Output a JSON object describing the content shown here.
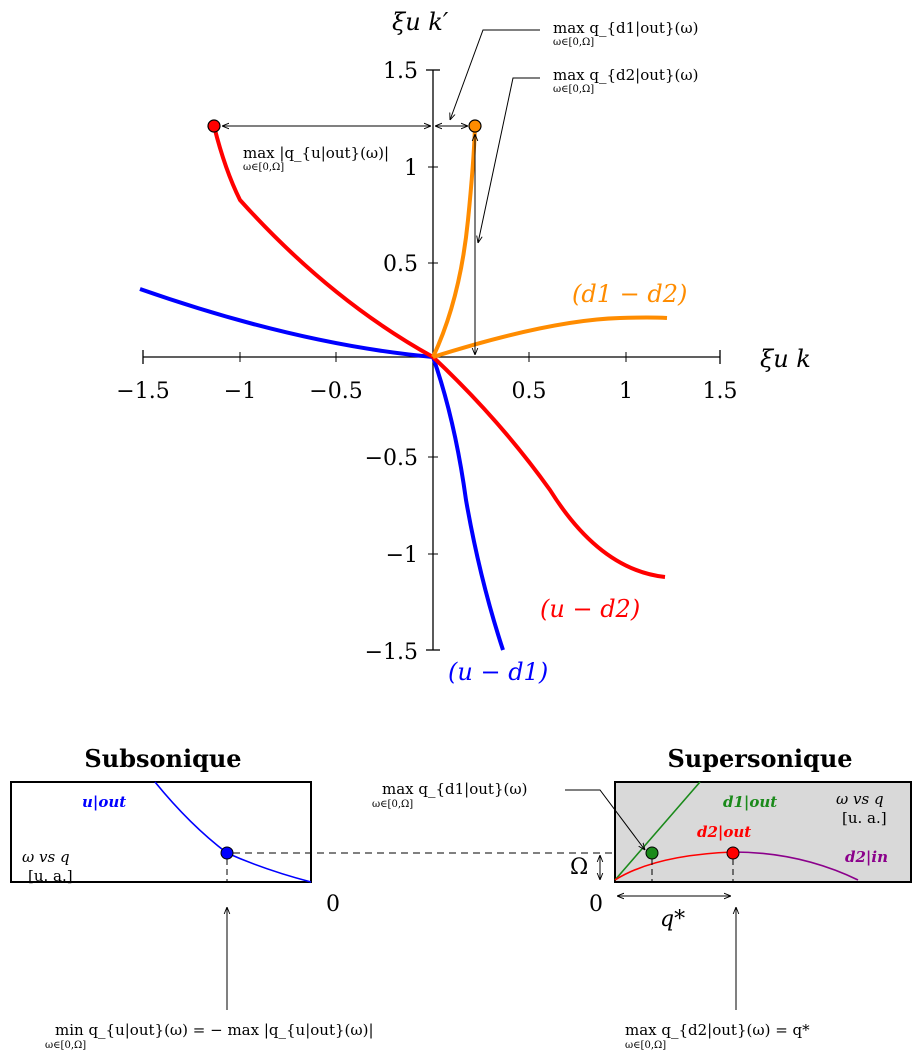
{
  "top_plot": {
    "y_axis_label": "ξu k′",
    "x_axis_label": "ξu k",
    "x_ticks": [
      "−1.5",
      "−1",
      "−0.5",
      "0.5",
      "1",
      "1.5"
    ],
    "y_ticks": [
      "1.5",
      "1",
      "0.5",
      "−0.5",
      "−1",
      "−1.5"
    ],
    "curve_labels": {
      "d1_d2": "(d1 − d2)",
      "u_d2": "(u − d2)",
      "u_d1": "(u − d1)"
    },
    "annotations": {
      "max_q_d1_out": "max q_{d1|out}(ω)",
      "max_q_d2_out": "max q_{d2|out}(ω)",
      "max_abs_q_u_out": "max |q_{u|out}(ω)|",
      "subscript": "ω∈[0,Ω]"
    },
    "colors": {
      "blue": "#0000ff",
      "red": "#ff0000",
      "orange": "#ff8c00"
    }
  },
  "bottom_left": {
    "title": "Subsonique",
    "curve_label": "u|out",
    "axes_label_line1": "ω  vs  q",
    "axes_label_line2": "[u. a.]",
    "zero_label": "0",
    "bottom_formula": "min q_{u|out}(ω) = − max |q_{u|out}(ω)|",
    "subscript": "ω∈[0,Ω]"
  },
  "bottom_right": {
    "title": "Supersonique",
    "d1_label": "d1|out",
    "d2_out_label": "d2|out",
    "d2_in_label": "d2|in",
    "axes_label_line1": "ω  vs  q",
    "axes_label_line2": "[u. a.]",
    "omega_label": "Ω",
    "zero_label": "0",
    "qstar_label": "q*",
    "left_annotation": "max q_{d1|out}(ω)",
    "bottom_formula": "max q_{d2|out}(ω) = q*",
    "subscript": "ω∈[0,Ω]",
    "colors": {
      "green": "#1a8a1a",
      "red": "#ff0000",
      "purple": "#8b008b",
      "panel_bg": "#d9d9d9"
    }
  }
}
